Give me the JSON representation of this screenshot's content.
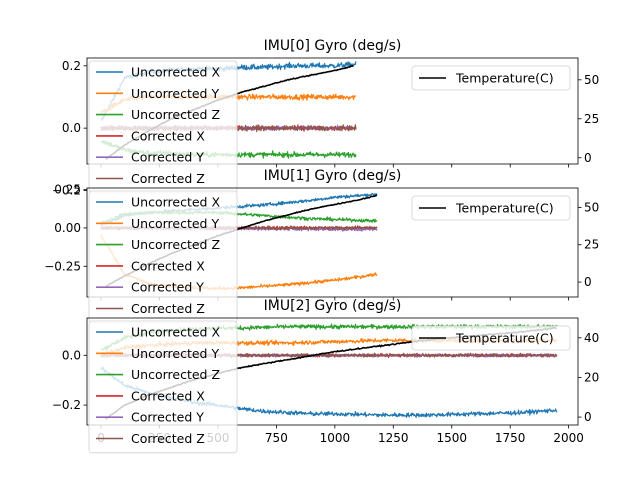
{
  "chart_data": [
    {
      "type": "line",
      "title": "IMU[0] Gyro (deg/s)",
      "xlim": [
        -60,
        2040
      ],
      "ylim": [
        -0.115,
        0.225
      ],
      "y2lim": [
        -4,
        64
      ],
      "xticks": [
        0,
        250,
        500,
        750,
        1000,
        1250,
        1500,
        1750,
        2000
      ],
      "show_xticklabels": false,
      "yticks": [
        -0.2,
        0.0,
        0.2
      ],
      "yticklabels": [
        "−0.2",
        "0.0",
        "0.2"
      ],
      "y2ticks": [
        0,
        25,
        50
      ],
      "y2ticklabels": [
        "0",
        "25",
        "50"
      ],
      "legend_position": "upper-left",
      "legend2_position": "upper-right",
      "series": [
        {
          "name": "Uncorrected X",
          "color": "#1f77b4",
          "x": [
            0,
            100,
            200,
            300,
            400,
            500,
            600,
            700,
            800,
            900,
            1000,
            1090
          ],
          "y": [
            0.02,
            0.16,
            0.18,
            0.185,
            0.19,
            0.19,
            0.195,
            0.195,
            0.2,
            0.2,
            0.2,
            0.205
          ],
          "noise": 0.008
        },
        {
          "name": "Uncorrected Y",
          "color": "#ff7f0e",
          "x": [
            0,
            100,
            200,
            300,
            400,
            500,
            600,
            700,
            800,
            900,
            1000,
            1090
          ],
          "y": [
            0.05,
            0.09,
            0.1,
            0.1,
            0.1,
            0.1,
            0.1,
            0.1,
            0.1,
            0.1,
            0.1,
            0.1
          ],
          "noise": 0.008
        },
        {
          "name": "Uncorrected Z",
          "color": "#2ca02c",
          "x": [
            0,
            100,
            200,
            300,
            400,
            500,
            600,
            700,
            800,
            900,
            1000,
            1090
          ],
          "y": [
            -0.04,
            -0.07,
            -0.08,
            -0.08,
            -0.085,
            -0.085,
            -0.085,
            -0.085,
            -0.085,
            -0.085,
            -0.085,
            -0.085
          ],
          "noise": 0.008
        },
        {
          "name": "Corrected X",
          "color": "#d62728",
          "x": [
            0,
            1090
          ],
          "y": [
            0.0,
            0.0
          ],
          "noise": 0.007
        },
        {
          "name": "Corrected Y",
          "color": "#9467bd",
          "x": [
            0,
            1090
          ],
          "y": [
            0.0,
            0.0
          ],
          "noise": 0.007
        },
        {
          "name": "Corrected Z",
          "color": "#8c564b",
          "x": [
            0,
            1090
          ],
          "y": [
            0.0,
            0.0
          ],
          "noise": 0.007
        }
      ],
      "secondary_series": [
        {
          "name": "Temperature(C)",
          "color": "#000000",
          "x": [
            20,
            100,
            200,
            300,
            400,
            500,
            600,
            700,
            800,
            900,
            1000,
            1080
          ],
          "y": [
            -1,
            8,
            17,
            25,
            31,
            37,
            42,
            46,
            50,
            53,
            56,
            59
          ]
        }
      ]
    },
    {
      "type": "line",
      "title": "IMU[1] Gyro (deg/s)",
      "xlim": [
        -60,
        2040
      ],
      "ylim": [
        -0.45,
        0.26
      ],
      "y2lim": [
        -10,
        63
      ],
      "xticks": [
        0,
        250,
        500,
        750,
        1000,
        1250,
        1500,
        1750,
        2000
      ],
      "show_xticklabels": false,
      "yticks": [
        -0.25,
        0.0,
        0.25
      ],
      "yticklabels": [
        "−0.25",
        "0.00",
        "0.25"
      ],
      "y2ticks": [
        0,
        25,
        50
      ],
      "y2ticklabels": [
        "0",
        "25",
        "50"
      ],
      "legend_position": "upper-left",
      "legend2_position": "upper-right",
      "series": [
        {
          "name": "Uncorrected X",
          "color": "#1f77b4",
          "x": [
            0,
            100,
            200,
            300,
            400,
            500,
            600,
            700,
            800,
            900,
            1000,
            1100,
            1180
          ],
          "y": [
            0.02,
            0.08,
            0.1,
            0.11,
            0.12,
            0.13,
            0.14,
            0.15,
            0.165,
            0.18,
            0.2,
            0.21,
            0.22
          ],
          "noise": 0.01
        },
        {
          "name": "Uncorrected Y",
          "color": "#ff7f0e",
          "x": [
            0,
            100,
            200,
            300,
            400,
            500,
            600,
            700,
            800,
            900,
            1000,
            1100,
            1180
          ],
          "y": [
            -0.05,
            -0.3,
            -0.36,
            -0.38,
            -0.39,
            -0.395,
            -0.39,
            -0.38,
            -0.37,
            -0.355,
            -0.34,
            -0.32,
            -0.3
          ],
          "noise": 0.01
        },
        {
          "name": "Uncorrected Z",
          "color": "#2ca02c",
          "x": [
            0,
            100,
            200,
            300,
            400,
            500,
            600,
            700,
            800,
            900,
            1000,
            1100,
            1180
          ],
          "y": [
            0.03,
            0.09,
            0.1,
            0.1,
            0.1,
            0.1,
            0.09,
            0.08,
            0.07,
            0.06,
            0.055,
            0.05,
            0.045
          ],
          "noise": 0.01
        },
        {
          "name": "Corrected X",
          "color": "#d62728",
          "x": [
            0,
            1180
          ],
          "y": [
            0.0,
            0.0
          ],
          "noise": 0.01
        },
        {
          "name": "Corrected Y",
          "color": "#9467bd",
          "x": [
            0,
            1180
          ],
          "y": [
            0.0,
            -0.01
          ],
          "noise": 0.01
        },
        {
          "name": "Corrected Z",
          "color": "#8c564b",
          "x": [
            0,
            1180
          ],
          "y": [
            0.0,
            0.0
          ],
          "noise": 0.01
        }
      ],
      "secondary_series": [
        {
          "name": "Temperature(C)",
          "color": "#000000",
          "x": [
            20,
            100,
            200,
            300,
            400,
            500,
            600,
            700,
            800,
            900,
            1000,
            1100,
            1180
          ],
          "y": [
            -3,
            4,
            12,
            19,
            25,
            31,
            36,
            41,
            45,
            49,
            52,
            55,
            58
          ]
        }
      ]
    },
    {
      "type": "line",
      "title": "IMU[2] Gyro (deg/s)",
      "xlim": [
        -60,
        2040
      ],
      "ylim": [
        -0.28,
        0.15
      ],
      "y2lim": [
        -4,
        50
      ],
      "xticks": [
        0,
        250,
        500,
        750,
        1000,
        1250,
        1500,
        1750,
        2000
      ],
      "xticklabels": [
        "0",
        "250",
        "500",
        "750",
        "1000",
        "1250",
        "1500",
        "1750",
        "2000"
      ],
      "show_xticklabels": true,
      "yticks": [
        -0.2,
        0.0
      ],
      "yticklabels": [
        "−0.2",
        "0.0"
      ],
      "y2ticks": [
        0,
        20,
        40
      ],
      "y2ticklabels": [
        "0",
        "20",
        "40"
      ],
      "legend_position": "upper-left",
      "legend2_position": "upper-right",
      "series": [
        {
          "name": "Uncorrected X",
          "color": "#1f77b4",
          "x": [
            0,
            100,
            200,
            300,
            400,
            500,
            600,
            700,
            800,
            900,
            1000,
            1200,
            1400,
            1600,
            1800,
            1950
          ],
          "y": [
            -0.05,
            -0.12,
            -0.15,
            -0.17,
            -0.19,
            -0.2,
            -0.215,
            -0.225,
            -0.23,
            -0.235,
            -0.235,
            -0.24,
            -0.24,
            -0.235,
            -0.23,
            -0.22
          ],
          "noise": 0.008
        },
        {
          "name": "Uncorrected Y",
          "color": "#ff7f0e",
          "x": [
            0,
            100,
            200,
            300,
            400,
            500,
            600,
            800,
            1000,
            1200,
            1400,
            1600,
            1800,
            1950
          ],
          "y": [
            0.0,
            0.03,
            0.04,
            0.045,
            0.05,
            0.05,
            0.05,
            0.05,
            0.055,
            0.06,
            0.06,
            0.06,
            0.06,
            0.06
          ],
          "noise": 0.008
        },
        {
          "name": "Uncorrected Z",
          "color": "#2ca02c",
          "x": [
            0,
            100,
            200,
            300,
            400,
            500,
            600,
            800,
            1000,
            1200,
            1400,
            1600,
            1800,
            1950
          ],
          "y": [
            0.02,
            0.07,
            0.09,
            0.1,
            0.105,
            0.11,
            0.11,
            0.115,
            0.115,
            0.115,
            0.115,
            0.115,
            0.115,
            0.115
          ],
          "noise": 0.008
        },
        {
          "name": "Corrected X",
          "color": "#d62728",
          "x": [
            0,
            1950
          ],
          "y": [
            0.0,
            0.0
          ],
          "noise": 0.006
        },
        {
          "name": "Corrected Y",
          "color": "#9467bd",
          "x": [
            0,
            1950
          ],
          "y": [
            0.0,
            0.0
          ],
          "noise": 0.006
        },
        {
          "name": "Corrected Z",
          "color": "#8c564b",
          "x": [
            0,
            1950
          ],
          "y": [
            0.0,
            0.0
          ],
          "noise": 0.006
        }
      ],
      "secondary_series": [
        {
          "name": "Temperature(C)",
          "color": "#000000",
          "x": [
            20,
            100,
            200,
            300,
            400,
            500,
            600,
            700,
            800,
            900,
            1000,
            1200,
            1400,
            1600,
            1800,
            1950
          ],
          "y": [
            -1,
            6,
            11,
            15,
            19,
            22,
            25,
            27,
            29,
            31,
            33,
            36,
            39,
            41,
            43,
            45
          ]
        }
      ]
    }
  ]
}
